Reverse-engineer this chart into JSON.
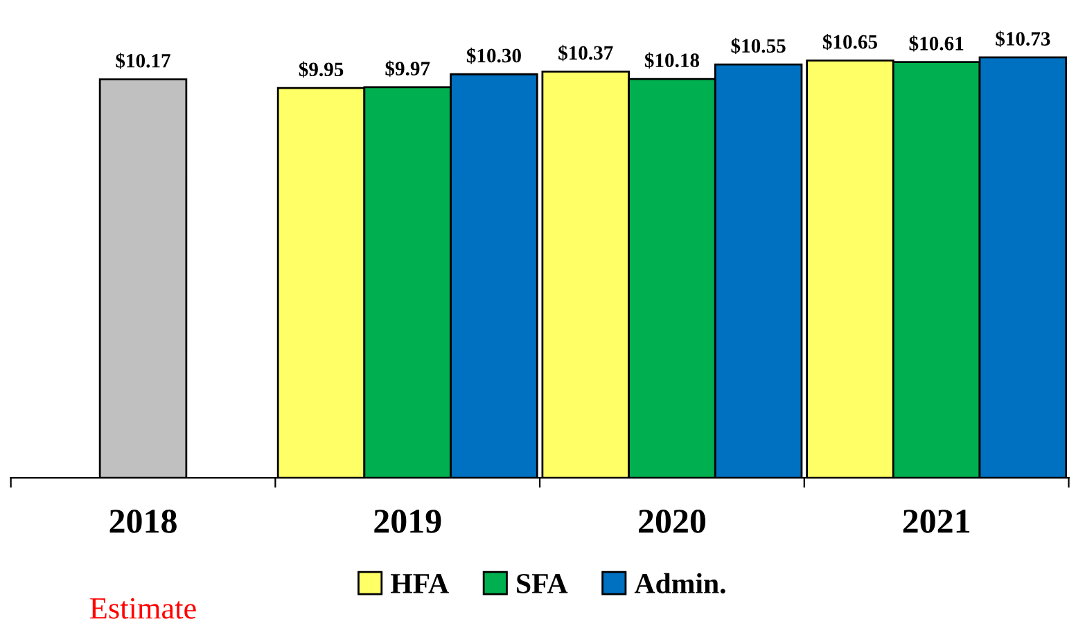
{
  "chart_data": {
    "type": "bar",
    "categories": [
      "2018",
      "2019",
      "2020",
      "2021"
    ],
    "series": [
      {
        "color": "#c0c0c0",
        "values": [
          10.17,
          null,
          null,
          null
        ],
        "value_labels": [
          "$10.17",
          null,
          null,
          null
        ]
      },
      {
        "name": "HFA",
        "color": "#ffff66",
        "values": [
          null,
          9.95,
          10.37,
          10.65
        ],
        "value_labels": [
          null,
          "$9.95",
          "$10.37",
          "$10.65"
        ]
      },
      {
        "name": "SFA",
        "color": "#00b050",
        "values": [
          null,
          9.97,
          10.18,
          10.61
        ],
        "value_labels": [
          null,
          "$9.97",
          "$10.18",
          "$10.61"
        ]
      },
      {
        "name": "Admin.",
        "color": "#0070c0",
        "values": [
          null,
          10.3,
          10.55,
          10.73
        ],
        "value_labels": [
          null,
          "$10.30",
          "$10.55",
          "$10.73"
        ]
      }
    ],
    "tick_labels": "x",
    "legend": "bottom",
    "annotations": [
      "Estimate"
    ]
  }
}
